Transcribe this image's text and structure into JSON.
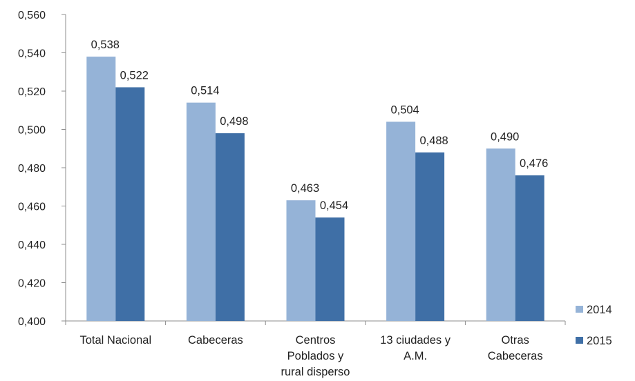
{
  "chart_data": {
    "type": "bar",
    "categories": [
      [
        "Total Nacional"
      ],
      [
        "Cabeceras"
      ],
      [
        "Centros",
        "Poblados y",
        "rural disperso"
      ],
      [
        "13 ciudades y",
        "A.M."
      ],
      [
        "Otras",
        "Cabeceras"
      ]
    ],
    "series": [
      {
        "name": "2014",
        "color": "#95b3d7",
        "values": [
          0.538,
          0.514,
          0.463,
          0.504,
          0.49
        ],
        "labels": [
          "0,538",
          "0,514",
          "0,463",
          "0,504",
          "0,490"
        ]
      },
      {
        "name": "2015",
        "color": "#3f6fa6",
        "values": [
          0.522,
          0.498,
          0.454,
          0.488,
          0.476
        ],
        "labels": [
          "0,522",
          "0,498",
          "0,454",
          "0,488",
          "0,476"
        ]
      }
    ],
    "ylim": [
      0.4,
      0.56
    ],
    "yticks": [
      "0,400",
      "0,420",
      "0,440",
      "0,460",
      "0,480",
      "0,500",
      "0,520",
      "0,540",
      "0,560"
    ],
    "title": "",
    "xlabel": "",
    "ylabel": "",
    "grid": false,
    "legend_position": "right-bottom"
  }
}
